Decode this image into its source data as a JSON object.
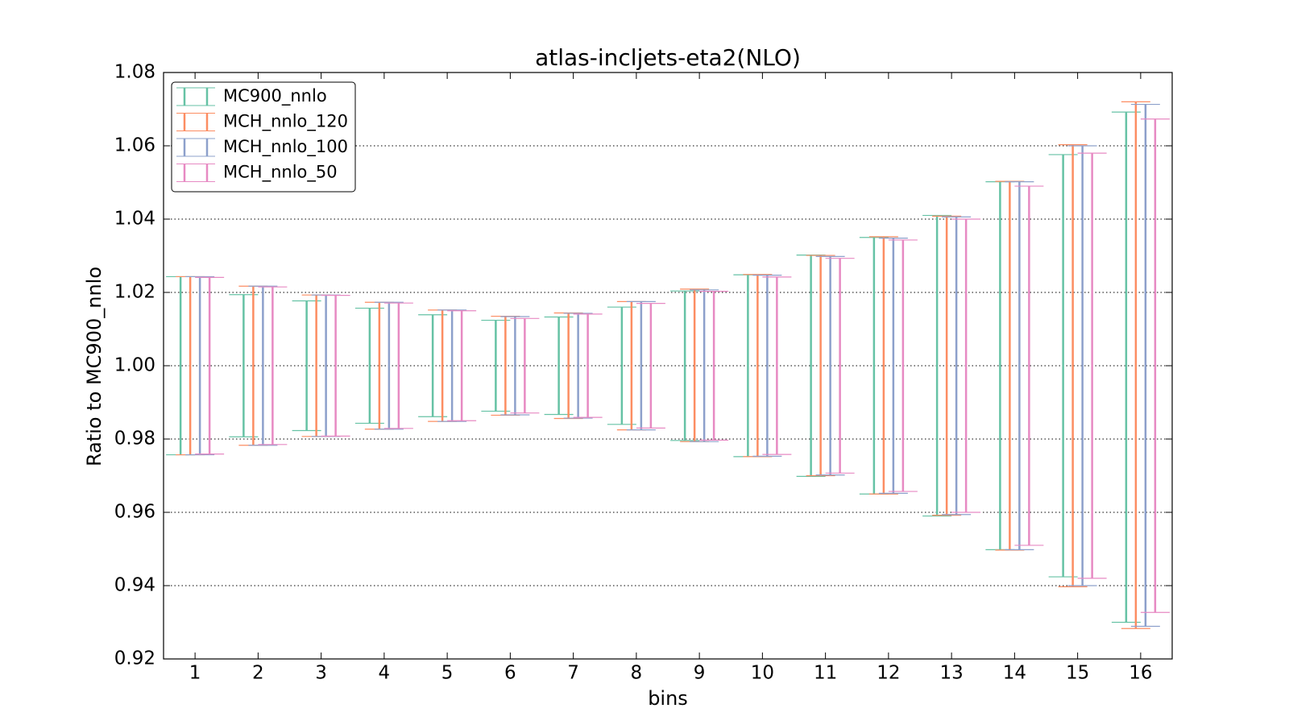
{
  "chart_data": {
    "type": "errorbar",
    "title": "atlas-incljets-eta2(NLO)",
    "xlabel": "bins",
    "ylabel": "Ratio to MC900_nnlo",
    "categories": [
      "1",
      "2",
      "3",
      "4",
      "5",
      "6",
      "7",
      "8",
      "9",
      "10",
      "11",
      "12",
      "13",
      "14",
      "15",
      "16"
    ],
    "ylim": [
      0.92,
      1.08
    ],
    "yticks": [
      0.92,
      0.94,
      0.96,
      0.98,
      {
        "value": 1,
        "label": "1.00"
      },
      1.02,
      1.04,
      1.06,
      1.08
    ],
    "grid": true,
    "legend": "upper left",
    "series": [
      {
        "name": "MC900_nnlo",
        "color": "#66c2a5",
        "low": [
          0.9757,
          0.9806,
          0.9823,
          0.9843,
          0.9861,
          0.9876,
          0.9867,
          0.984,
          0.9796,
          0.9752,
          0.9698,
          0.965,
          0.959,
          0.9498,
          0.9424,
          0.93
        ],
        "high": [
          1.0243,
          1.0194,
          1.0177,
          1.0157,
          1.0139,
          1.0124,
          1.0133,
          1.016,
          1.0204,
          1.0248,
          1.0302,
          1.035,
          1.041,
          1.0502,
          1.0576,
          1.0692
        ]
      },
      {
        "name": "MCH_nnlo_120",
        "color": "#fc8d62",
        "low": [
          0.9757,
          0.9783,
          0.9807,
          0.9827,
          0.9848,
          0.9865,
          0.9856,
          0.9825,
          0.9793,
          0.9752,
          0.97,
          0.965,
          0.9592,
          0.9497,
          0.9397,
          0.9283
        ],
        "high": [
          1.0243,
          1.0217,
          1.0193,
          1.0173,
          1.0152,
          1.0135,
          1.0144,
          1.0175,
          1.0209,
          1.0249,
          1.0301,
          1.0352,
          1.0408,
          1.0503,
          1.0603,
          1.072
        ]
      },
      {
        "name": "MCH_nnlo_100",
        "color": "#8da0cb",
        "low": [
          0.9757,
          0.9783,
          0.9807,
          0.9827,
          0.9848,
          0.9866,
          0.9857,
          0.9825,
          0.9793,
          0.9753,
          0.9702,
          0.9652,
          0.9594,
          0.9498,
          0.94,
          0.9289
        ],
        "high": [
          1.0243,
          1.0217,
          1.0193,
          1.0173,
          1.0152,
          1.0134,
          1.0143,
          1.0175,
          1.0207,
          1.0247,
          1.0298,
          1.0348,
          1.0406,
          1.0502,
          1.06,
          1.0713
        ]
      },
      {
        "name": "MCH_nnlo_50",
        "color": "#e78ac3",
        "low": [
          0.9759,
          0.9785,
          0.9808,
          0.9829,
          0.985,
          0.9871,
          0.9859,
          0.983,
          0.9797,
          0.9758,
          0.9707,
          0.9657,
          0.96,
          0.951,
          0.942,
          0.9327
        ],
        "high": [
          1.0241,
          1.0215,
          1.0192,
          1.0171,
          1.015,
          1.0129,
          1.0141,
          1.017,
          1.0203,
          1.0242,
          1.0293,
          1.0343,
          1.04,
          1.049,
          1.058,
          1.0673
        ]
      }
    ]
  }
}
